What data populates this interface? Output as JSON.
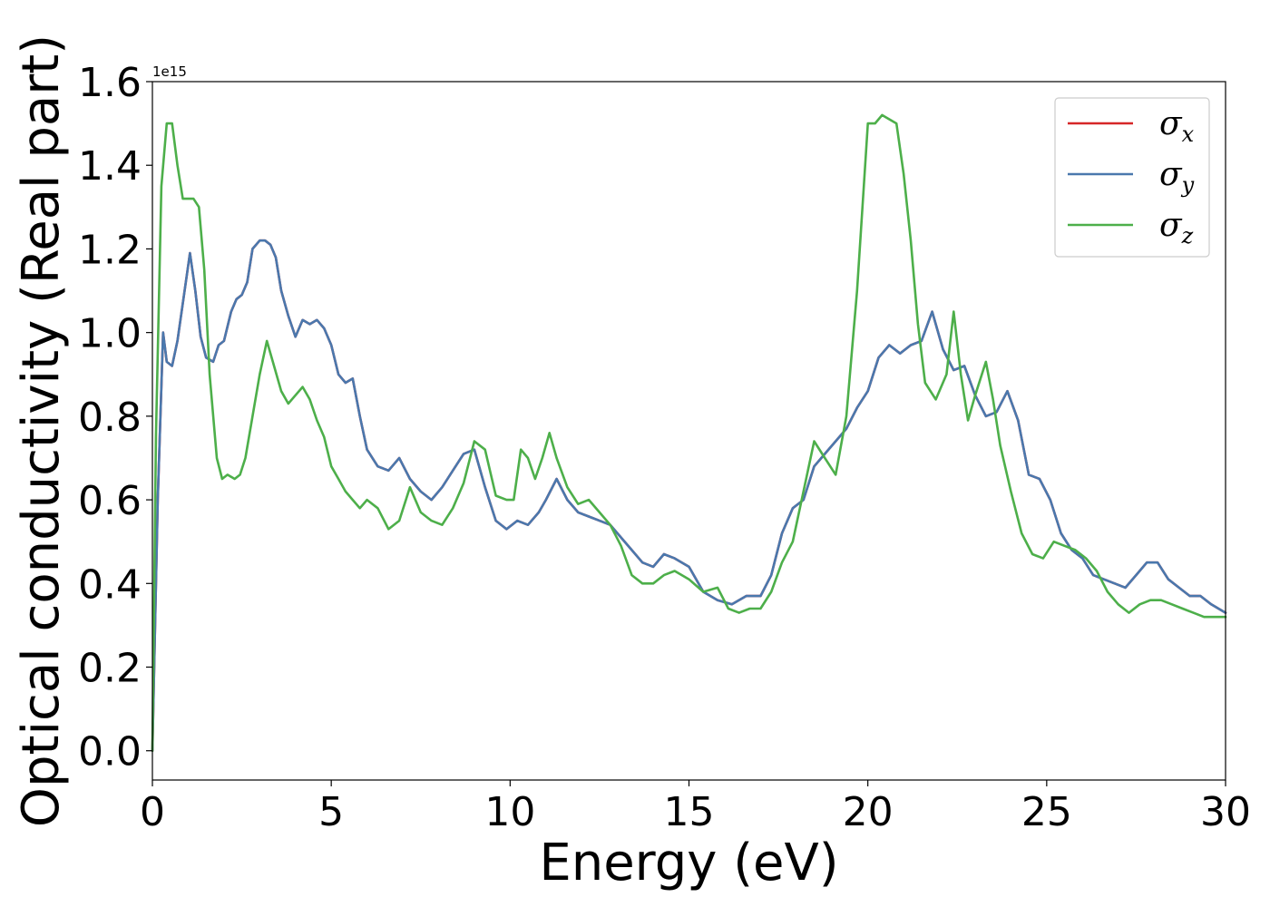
{
  "chart_data": {
    "type": "line",
    "title": "",
    "xlabel": "Energy (eV)",
    "ylabel": "Optical conductivity (Real part)",
    "y_offset_label": "1e15",
    "xlim": [
      0,
      30
    ],
    "ylim": [
      -0.07,
      1.6
    ],
    "xticks": [
      0,
      5,
      10,
      15,
      20,
      25,
      30
    ],
    "yticks": [
      0.0,
      0.2,
      0.4,
      0.6,
      0.8,
      1.0,
      1.2,
      1.4,
      1.6
    ],
    "xtick_labels": [
      "0",
      "5",
      "10",
      "15",
      "20",
      "25",
      "30"
    ],
    "ytick_labels": [
      "0.0",
      "0.2",
      "0.4",
      "0.6",
      "0.8",
      "1.0",
      "1.2",
      "1.4",
      "1.6"
    ],
    "grid": false,
    "legend_position": "top-right",
    "series": [
      {
        "name": "σx",
        "symbol": "σ",
        "subscript": "x",
        "color": "#d62728",
        "x": [
          0,
          0.15,
          0.3,
          0.4,
          0.55,
          0.7,
          0.9,
          1.05,
          1.2,
          1.35,
          1.5,
          1.7,
          1.85,
          2.0,
          2.2,
          2.35,
          2.5,
          2.65,
          2.8,
          3.0,
          3.15,
          3.3,
          3.45,
          3.6,
          3.8,
          4.0,
          4.2,
          4.4,
          4.6,
          4.8,
          5.0,
          5.2,
          5.4,
          5.6,
          5.8,
          6.0,
          6.3,
          6.6,
          6.9,
          7.2,
          7.5,
          7.8,
          8.1,
          8.4,
          8.7,
          9.0,
          9.3,
          9.6,
          9.9,
          10.2,
          10.5,
          10.8,
          11.0,
          11.3,
          11.6,
          11.9,
          12.2,
          12.5,
          12.8,
          13.1,
          13.4,
          13.7,
          14.0,
          14.3,
          14.6,
          15.0,
          15.4,
          15.8,
          16.2,
          16.6,
          17.0,
          17.3,
          17.6,
          17.9,
          18.2,
          18.5,
          18.8,
          19.1,
          19.4,
          19.7,
          20.0,
          20.3,
          20.6,
          20.9,
          21.2,
          21.5,
          21.8,
          22.1,
          22.4,
          22.7,
          23.0,
          23.3,
          23.6,
          23.9,
          24.2,
          24.5,
          24.8,
          25.1,
          25.4,
          25.7,
          26.0,
          26.3,
          26.6,
          26.9,
          27.2,
          27.5,
          27.8,
          28.1,
          28.4,
          28.7,
          29.0,
          29.3,
          29.6,
          30.0
        ],
        "y": [
          0.0,
          0.6,
          1.0,
          0.93,
          0.92,
          0.98,
          1.1,
          1.19,
          1.1,
          0.99,
          0.94,
          0.93,
          0.97,
          0.98,
          1.05,
          1.08,
          1.09,
          1.12,
          1.2,
          1.22,
          1.22,
          1.21,
          1.18,
          1.1,
          1.04,
          0.99,
          1.03,
          1.02,
          1.03,
          1.01,
          0.97,
          0.9,
          0.88,
          0.89,
          0.8,
          0.72,
          0.68,
          0.67,
          0.7,
          0.65,
          0.62,
          0.6,
          0.63,
          0.67,
          0.71,
          0.72,
          0.63,
          0.55,
          0.53,
          0.55,
          0.54,
          0.57,
          0.6,
          0.65,
          0.6,
          0.57,
          0.56,
          0.55,
          0.54,
          0.51,
          0.48,
          0.45,
          0.44,
          0.47,
          0.46,
          0.44,
          0.38,
          0.36,
          0.35,
          0.37,
          0.37,
          0.42,
          0.52,
          0.58,
          0.6,
          0.68,
          0.71,
          0.74,
          0.77,
          0.82,
          0.86,
          0.94,
          0.97,
          0.95,
          0.97,
          0.98,
          1.05,
          0.96,
          0.91,
          0.92,
          0.85,
          0.8,
          0.81,
          0.86,
          0.79,
          0.66,
          0.65,
          0.6,
          0.52,
          0.48,
          0.46,
          0.42,
          0.41,
          0.4,
          0.39,
          0.42,
          0.45,
          0.45,
          0.41,
          0.39,
          0.37,
          0.37,
          0.35,
          0.33
        ]
      },
      {
        "name": "σy",
        "symbol": "σ",
        "subscript": "y",
        "color": "#4a78ad",
        "x": [
          0,
          0.15,
          0.3,
          0.4,
          0.55,
          0.7,
          0.9,
          1.05,
          1.2,
          1.35,
          1.5,
          1.7,
          1.85,
          2.0,
          2.2,
          2.35,
          2.5,
          2.65,
          2.8,
          3.0,
          3.15,
          3.3,
          3.45,
          3.6,
          3.8,
          4.0,
          4.2,
          4.4,
          4.6,
          4.8,
          5.0,
          5.2,
          5.4,
          5.6,
          5.8,
          6.0,
          6.3,
          6.6,
          6.9,
          7.2,
          7.5,
          7.8,
          8.1,
          8.4,
          8.7,
          9.0,
          9.3,
          9.6,
          9.9,
          10.2,
          10.5,
          10.8,
          11.0,
          11.3,
          11.6,
          11.9,
          12.2,
          12.5,
          12.8,
          13.1,
          13.4,
          13.7,
          14.0,
          14.3,
          14.6,
          15.0,
          15.4,
          15.8,
          16.2,
          16.6,
          17.0,
          17.3,
          17.6,
          17.9,
          18.2,
          18.5,
          18.8,
          19.1,
          19.4,
          19.7,
          20.0,
          20.3,
          20.6,
          20.9,
          21.2,
          21.5,
          21.8,
          22.1,
          22.4,
          22.7,
          23.0,
          23.3,
          23.6,
          23.9,
          24.2,
          24.5,
          24.8,
          25.1,
          25.4,
          25.7,
          26.0,
          26.3,
          26.6,
          26.9,
          27.2,
          27.5,
          27.8,
          28.1,
          28.4,
          28.7,
          29.0,
          29.3,
          29.6,
          30.0
        ],
        "y": [
          0.0,
          0.6,
          1.0,
          0.93,
          0.92,
          0.98,
          1.1,
          1.19,
          1.1,
          0.99,
          0.94,
          0.93,
          0.97,
          0.98,
          1.05,
          1.08,
          1.09,
          1.12,
          1.2,
          1.22,
          1.22,
          1.21,
          1.18,
          1.1,
          1.04,
          0.99,
          1.03,
          1.02,
          1.03,
          1.01,
          0.97,
          0.9,
          0.88,
          0.89,
          0.8,
          0.72,
          0.68,
          0.67,
          0.7,
          0.65,
          0.62,
          0.6,
          0.63,
          0.67,
          0.71,
          0.72,
          0.63,
          0.55,
          0.53,
          0.55,
          0.54,
          0.57,
          0.6,
          0.65,
          0.6,
          0.57,
          0.56,
          0.55,
          0.54,
          0.51,
          0.48,
          0.45,
          0.44,
          0.47,
          0.46,
          0.44,
          0.38,
          0.36,
          0.35,
          0.37,
          0.37,
          0.42,
          0.52,
          0.58,
          0.6,
          0.68,
          0.71,
          0.74,
          0.77,
          0.82,
          0.86,
          0.94,
          0.97,
          0.95,
          0.97,
          0.98,
          1.05,
          0.96,
          0.91,
          0.92,
          0.85,
          0.8,
          0.81,
          0.86,
          0.79,
          0.66,
          0.65,
          0.6,
          0.52,
          0.48,
          0.46,
          0.42,
          0.41,
          0.4,
          0.39,
          0.42,
          0.45,
          0.45,
          0.41,
          0.39,
          0.37,
          0.37,
          0.35,
          0.33
        ]
      },
      {
        "name": "σz",
        "symbol": "σ",
        "subscript": "z",
        "color": "#4daf4a",
        "x": [
          0,
          0.1,
          0.25,
          0.4,
          0.55,
          0.7,
          0.85,
          1.0,
          1.15,
          1.3,
          1.45,
          1.6,
          1.8,
          1.95,
          2.1,
          2.3,
          2.45,
          2.6,
          2.8,
          3.0,
          3.2,
          3.4,
          3.6,
          3.8,
          4.0,
          4.2,
          4.4,
          4.6,
          4.8,
          5.0,
          5.2,
          5.4,
          5.6,
          5.8,
          6.0,
          6.3,
          6.6,
          6.9,
          7.2,
          7.5,
          7.8,
          8.1,
          8.4,
          8.7,
          9.0,
          9.3,
          9.6,
          9.9,
          10.1,
          10.3,
          10.5,
          10.7,
          10.9,
          11.1,
          11.3,
          11.6,
          11.9,
          12.2,
          12.5,
          12.8,
          13.1,
          13.4,
          13.7,
          14.0,
          14.3,
          14.6,
          15.0,
          15.4,
          15.8,
          16.1,
          16.4,
          16.7,
          17.0,
          17.3,
          17.6,
          17.9,
          18.2,
          18.5,
          18.8,
          19.1,
          19.4,
          19.7,
          20.0,
          20.2,
          20.4,
          20.6,
          20.8,
          21.0,
          21.2,
          21.4,
          21.6,
          21.9,
          22.2,
          22.4,
          22.6,
          22.8,
          23.0,
          23.3,
          23.5,
          23.7,
          24.0,
          24.3,
          24.6,
          24.9,
          25.2,
          25.5,
          25.8,
          26.1,
          26.4,
          26.7,
          27.0,
          27.3,
          27.6,
          27.9,
          28.2,
          28.5,
          28.8,
          29.1,
          29.4,
          30.0
        ],
        "y": [
          0.0,
          0.75,
          1.35,
          1.5,
          1.5,
          1.4,
          1.32,
          1.32,
          1.32,
          1.3,
          1.15,
          0.9,
          0.7,
          0.65,
          0.66,
          0.65,
          0.66,
          0.7,
          0.8,
          0.9,
          0.98,
          0.92,
          0.86,
          0.83,
          0.85,
          0.87,
          0.84,
          0.79,
          0.75,
          0.68,
          0.65,
          0.62,
          0.6,
          0.58,
          0.6,
          0.58,
          0.53,
          0.55,
          0.63,
          0.57,
          0.55,
          0.54,
          0.58,
          0.64,
          0.74,
          0.72,
          0.61,
          0.6,
          0.6,
          0.72,
          0.7,
          0.65,
          0.7,
          0.76,
          0.7,
          0.63,
          0.59,
          0.6,
          0.57,
          0.54,
          0.49,
          0.42,
          0.4,
          0.4,
          0.42,
          0.43,
          0.41,
          0.38,
          0.39,
          0.34,
          0.33,
          0.34,
          0.34,
          0.38,
          0.45,
          0.5,
          0.62,
          0.74,
          0.7,
          0.66,
          0.8,
          1.1,
          1.5,
          1.5,
          1.52,
          1.51,
          1.5,
          1.38,
          1.22,
          1.02,
          0.88,
          0.84,
          0.9,
          1.05,
          0.9,
          0.79,
          0.85,
          0.93,
          0.84,
          0.73,
          0.62,
          0.52,
          0.47,
          0.46,
          0.5,
          0.49,
          0.48,
          0.46,
          0.43,
          0.38,
          0.35,
          0.33,
          0.35,
          0.36,
          0.36,
          0.35,
          0.34,
          0.33,
          0.32,
          0.32
        ]
      }
    ]
  }
}
